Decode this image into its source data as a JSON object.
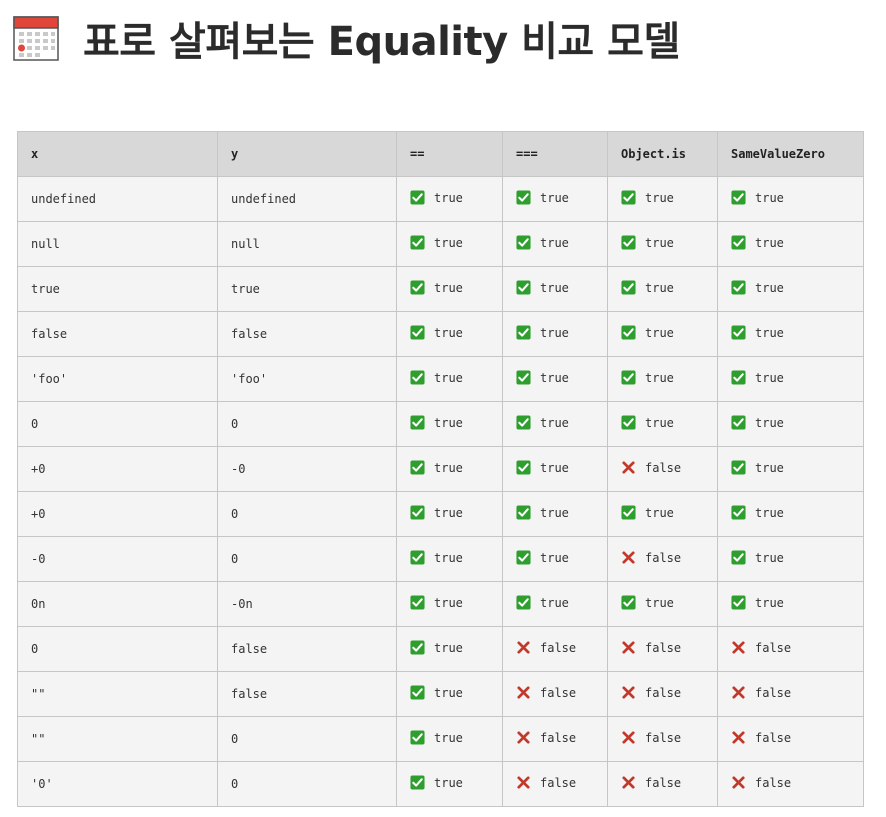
{
  "page": {
    "title": "표로 살펴보는 Equality 비교 모델",
    "title_icon": "calendar-icon"
  },
  "colors": {
    "check_green": "#2e9e2e",
    "cross_red": "#c0392b",
    "header_bg": "#d8d8d8",
    "row_bg": "#f4f4f4",
    "border": "#c6c6c6"
  },
  "table": {
    "headers": [
      "x",
      "y",
      "==",
      "===",
      "Object.is",
      "SameValueZero"
    ],
    "rows": [
      {
        "x": "undefined",
        "y": "undefined",
        "results": [
          true,
          true,
          true,
          true
        ]
      },
      {
        "x": "null",
        "y": "null",
        "results": [
          true,
          true,
          true,
          true
        ]
      },
      {
        "x": "true",
        "y": "true",
        "results": [
          true,
          true,
          true,
          true
        ]
      },
      {
        "x": "false",
        "y": "false",
        "results": [
          true,
          true,
          true,
          true
        ]
      },
      {
        "x": "'foo'",
        "y": "'foo'",
        "results": [
          true,
          true,
          true,
          true
        ]
      },
      {
        "x": "0",
        "y": "0",
        "results": [
          true,
          true,
          true,
          true
        ]
      },
      {
        "x": "+0",
        "y": "-0",
        "results": [
          true,
          true,
          false,
          true
        ]
      },
      {
        "x": "+0",
        "y": "0",
        "results": [
          true,
          true,
          true,
          true
        ]
      },
      {
        "x": "-0",
        "y": "0",
        "results": [
          true,
          true,
          false,
          true
        ]
      },
      {
        "x": "0n",
        "y": "-0n",
        "results": [
          true,
          true,
          true,
          true
        ]
      },
      {
        "x": "0",
        "y": "false",
        "results": [
          true,
          false,
          false,
          false
        ]
      },
      {
        "x": "\"\"",
        "y": "false",
        "results": [
          true,
          false,
          false,
          false
        ]
      },
      {
        "x": "\"\"",
        "y": "0",
        "results": [
          true,
          false,
          false,
          false
        ]
      },
      {
        "x": "'0'",
        "y": "0",
        "results": [
          true,
          false,
          false,
          false
        ]
      }
    ],
    "true_label": "true",
    "false_label": "false",
    "true_icon": "check-mark-icon",
    "false_icon": "cross-mark-icon"
  }
}
